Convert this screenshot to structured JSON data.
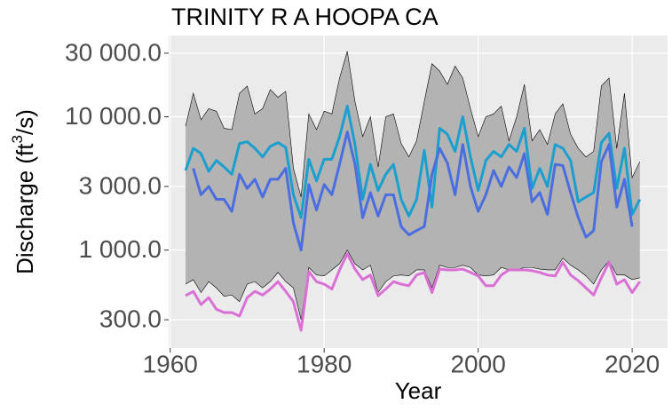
{
  "chart_data": {
    "type": "line",
    "title": "TRINITY R A HOOPA CA",
    "x_label": "Year",
    "y_label": {
      "text": "Discharge (ft",
      "superscript": "3",
      "suffix": "/s)"
    },
    "x": [
      1962,
      1963,
      1964,
      1965,
      1966,
      1967,
      1968,
      1969,
      1970,
      1971,
      1972,
      1973,
      1974,
      1975,
      1976,
      1977,
      1978,
      1979,
      1980,
      1981,
      1982,
      1983,
      1984,
      1985,
      1986,
      1987,
      1988,
      1989,
      1990,
      1991,
      1992,
      1993,
      1994,
      1995,
      1996,
      1997,
      1998,
      1999,
      2000,
      2001,
      2002,
      2003,
      2004,
      2005,
      2006,
      2007,
      2008,
      2009,
      2010,
      2011,
      2012,
      2013,
      2014,
      2015,
      2016,
      2017,
      2018,
      2019,
      2020,
      2021
    ],
    "band": {
      "color": "#b3b3b3",
      "line_color": "#000000",
      "upper": [
        8500,
        15000,
        9500,
        11500,
        11000,
        8200,
        8000,
        15000,
        17000,
        10500,
        11500,
        16000,
        14000,
        15500,
        4100,
        2500,
        10500,
        8000,
        11000,
        10500,
        19500,
        31000,
        13000,
        7100,
        10000,
        4200,
        10000,
        10500,
        6300,
        5000,
        6600,
        13000,
        25000,
        22000,
        17500,
        24000,
        19500,
        11500,
        7100,
        10000,
        10500,
        12000,
        6600,
        10000,
        17500,
        6600,
        8000,
        6200,
        10500,
        12500,
        7400,
        5800,
        5000,
        5500,
        17000,
        19500,
        5800,
        15000,
        3500,
        4600
      ],
      "lower": [
        555,
        600,
        480,
        580,
        520,
        450,
        460,
        410,
        555,
        580,
        520,
        580,
        680,
        580,
        520,
        300,
        740,
        650,
        640,
        710,
        790,
        1000,
        790,
        710,
        770,
        480,
        580,
        640,
        650,
        640,
        710,
        710,
        520,
        770,
        740,
        740,
        770,
        740,
        650,
        640,
        650,
        740,
        710,
        710,
        740,
        740,
        720,
        710,
        710,
        870,
        770,
        710,
        640,
        555,
        710,
        830,
        650,
        650,
        600,
        620
      ]
    },
    "series": [
      {
        "color": "#1a9fcf",
        "values": [
          3950,
          5800,
          5300,
          3900,
          4700,
          4200,
          3700,
          6300,
          6500,
          5800,
          5000,
          6000,
          6400,
          5900,
          2600,
          1750,
          4800,
          3300,
          4800,
          4800,
          7100,
          12000,
          6200,
          2400,
          4400,
          2800,
          3700,
          4400,
          2400,
          1800,
          2400,
          5600,
          2100,
          8200,
          7400,
          5500,
          10000,
          5000,
          2800,
          4700,
          5500,
          5000,
          6200,
          5500,
          8200,
          2900,
          4100,
          3000,
          6200,
          5800,
          4700,
          2300,
          2500,
          2700,
          6400,
          7500,
          2900,
          5800,
          1850,
          2400
        ]
      },
      {
        "color": "#4a6ee0",
        "values": [
          null,
          4100,
          2600,
          3000,
          2400,
          2400,
          1950,
          3700,
          2900,
          3400,
          2500,
          3400,
          3400,
          4100,
          1600,
          1000,
          3100,
          2000,
          3100,
          2600,
          4400,
          7700,
          4400,
          1750,
          2700,
          1800,
          2600,
          2600,
          1500,
          1300,
          1400,
          1500,
          3700,
          5800,
          4500,
          2600,
          6200,
          3000,
          1950,
          2600,
          3950,
          3000,
          4200,
          3500,
          5300,
          2300,
          2700,
          1850,
          4400,
          4300,
          2700,
          1750,
          1250,
          1400,
          4600,
          6200,
          2100,
          3400,
          1500,
          null
        ]
      },
      {
        "color": "#da70d6",
        "values": [
          455,
          490,
          390,
          440,
          360,
          340,
          340,
          320,
          440,
          490,
          460,
          510,
          580,
          490,
          410,
          250,
          690,
          580,
          555,
          510,
          710,
          940,
          720,
          600,
          650,
          455,
          510,
          580,
          555,
          540,
          650,
          680,
          480,
          720,
          710,
          710,
          720,
          680,
          640,
          540,
          540,
          650,
          710,
          710,
          710,
          700,
          680,
          650,
          640,
          810,
          650,
          590,
          520,
          460,
          620,
          810,
          555,
          600,
          480,
          580
        ]
      }
    ],
    "xlim": [
      1959.8,
      2024.6
    ],
    "xticks": [
      1960,
      1980,
      2000,
      2020
    ],
    "ylim": [
      184,
      40700
    ],
    "log_y": true,
    "yticks": [
      {
        "value": 300,
        "label": "300.0"
      },
      {
        "value": 1000,
        "label": "1 000.0"
      },
      {
        "value": 3000,
        "label": "3 000.0"
      },
      {
        "value": 10000,
        "label": "10 000.0"
      },
      {
        "value": 30000,
        "label": "30 000.0"
      }
    ],
    "grid": true
  }
}
